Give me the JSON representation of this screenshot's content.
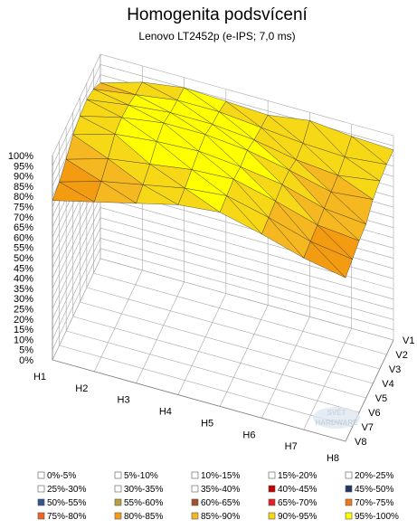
{
  "chart_data": {
    "type": "surface",
    "title": "Homogenita podsvícení",
    "subtitle": "Lenovo  LT2452p (e-IPS; 7,0 ms)",
    "x": [
      "H1",
      "H2",
      "H3",
      "H4",
      "H5",
      "H6",
      "H7",
      "H8"
    ],
    "y": [
      "V1",
      "V2",
      "V3",
      "V4",
      "V5",
      "V6",
      "V7",
      "V8"
    ],
    "zlim": [
      0,
      100
    ],
    "z_ticks": [
      "0%",
      "5%",
      "10%",
      "15%",
      "20%",
      "25%",
      "30%",
      "35%",
      "40%",
      "45%",
      "50%",
      "55%",
      "60%",
      "65%",
      "70%",
      "75%",
      "80%",
      "85%",
      "90%",
      "95%",
      "100%"
    ],
    "values_percent": [
      [
        86,
        92,
        95,
        94,
        93,
        96,
        94,
        93
      ],
      [
        90,
        93,
        96,
        96,
        94,
        92,
        91,
        93
      ],
      [
        92,
        95,
        97,
        97,
        95,
        91,
        89,
        92
      ],
      [
        91,
        96,
        99,
        99,
        97,
        93,
        88,
        90
      ],
      [
        89,
        95,
        97,
        98,
        96,
        93,
        87,
        85
      ],
      [
        84,
        90,
        93,
        96,
        97,
        92,
        86,
        84
      ],
      [
        80,
        86,
        90,
        94,
        96,
        91,
        85,
        82
      ],
      [
        78,
        83,
        88,
        93,
        95,
        90,
        84,
        80
      ]
    ],
    "legend": [
      {
        "label": "0%-5%",
        "color": "#ffffff"
      },
      {
        "label": "5%-10%",
        "color": "#ffffff"
      },
      {
        "label": "10%-15%",
        "color": "#ffffff"
      },
      {
        "label": "15%-20%",
        "color": "#ffffff"
      },
      {
        "label": "20%-25%",
        "color": "#ffffff"
      },
      {
        "label": "25%-30%",
        "color": "#ffffff"
      },
      {
        "label": "30%-35%",
        "color": "#ffffff"
      },
      {
        "label": "35%-40%",
        "color": "#ffffff"
      },
      {
        "label": "40%-45%",
        "color": "#c00000"
      },
      {
        "label": "45%-50%",
        "color": "#1f3864"
      },
      {
        "label": "50%-55%",
        "color": "#2f5496"
      },
      {
        "label": "55%-60%",
        "color": "#b8a040"
      },
      {
        "label": "60%-65%",
        "color": "#a0522d"
      },
      {
        "label": "65%-70%",
        "color": "#e52020"
      },
      {
        "label": "70%-75%",
        "color": "#f07818"
      },
      {
        "label": "75%-80%",
        "color": "#f26522"
      },
      {
        "label": "80%-85%",
        "color": "#f39c12"
      },
      {
        "label": "85%-90%",
        "color": "#f6b820"
      },
      {
        "label": "90%-95%",
        "color": "#f7d816"
      },
      {
        "label": "95%-100%",
        "color": "#ffff00"
      }
    ],
    "legend_position": "bottom",
    "grid": true
  },
  "watermark": {
    "line1": "SVĚT",
    "line2": "HARDWARE"
  }
}
